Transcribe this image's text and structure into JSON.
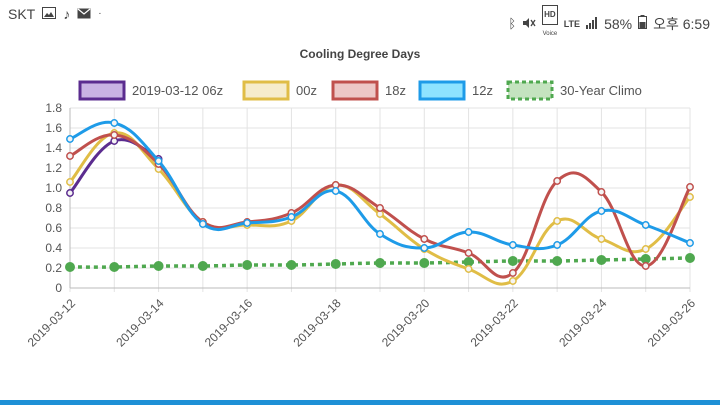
{
  "status_bar": {
    "carrier": "SKT",
    "battery": "58%",
    "time": "오후 6:59",
    "network": "LTE",
    "hd_label": "HD",
    "voice_label": "Voice",
    "left_icons": [
      "gallery-icon",
      "music-note-icon",
      "mail-icon",
      "dot-icon"
    ],
    "right_icons": [
      "bluetooth-icon",
      "mute-icon",
      "signal-icon",
      "battery-icon"
    ]
  },
  "colors": {
    "accent_bar": "#1e90d6",
    "series": [
      "#5b2c8f",
      "#e0bd46",
      "#c0504d",
      "#1e9be8",
      "#4fa84f"
    ]
  },
  "chart_data": {
    "type": "line",
    "title": "Cooling Degree Days",
    "legend_position": "top",
    "grid": true,
    "ylim": [
      0,
      1.8
    ],
    "yticks": [
      0,
      0.2,
      0.4,
      0.6,
      0.8,
      1.0,
      1.2,
      1.4,
      1.6,
      1.8
    ],
    "ytick_labels": [
      "0",
      "0.2",
      "0.4",
      "0.6",
      "0.8",
      "1.0",
      "1.2",
      "1.4",
      "1.6",
      "1.8"
    ],
    "x": [
      "2019-03-12",
      "2019-03-13",
      "2019-03-14",
      "2019-03-15",
      "2019-03-16",
      "2019-03-17",
      "2019-03-18",
      "2019-03-19",
      "2019-03-20",
      "2019-03-21",
      "2019-03-22",
      "2019-03-23",
      "2019-03-24",
      "2019-03-25",
      "2019-03-26"
    ],
    "xtick_labels": [
      "2019-03-12",
      "2019-03-14",
      "2019-03-16",
      "2019-03-18",
      "2019-03-20",
      "2019-03-22",
      "2019-03-24",
      "2019-03-26"
    ],
    "series": [
      {
        "name": "2019-03-12 06z",
        "values": [
          0.95,
          1.47,
          1.29,
          null,
          null,
          null,
          null,
          null,
          null,
          null,
          null,
          null,
          null,
          null,
          null
        ]
      },
      {
        "name": "00z",
        "values": [
          1.06,
          1.55,
          1.19,
          0.66,
          0.63,
          0.67,
          1.03,
          0.74,
          0.39,
          0.19,
          0.07,
          0.67,
          0.49,
          0.39,
          0.91
        ]
      },
      {
        "name": "18z",
        "values": [
          1.32,
          1.53,
          1.24,
          0.66,
          0.66,
          0.75,
          1.03,
          0.8,
          0.49,
          0.35,
          0.15,
          1.07,
          0.96,
          0.22,
          1.01
        ]
      },
      {
        "name": "12z",
        "values": [
          1.49,
          1.65,
          1.27,
          0.64,
          0.65,
          0.71,
          0.97,
          0.54,
          0.4,
          0.56,
          0.43,
          0.43,
          0.77,
          0.63,
          0.45
        ]
      },
      {
        "name": "30-Year Climo",
        "values": [
          0.21,
          0.21,
          0.22,
          0.22,
          0.23,
          0.23,
          0.24,
          0.25,
          0.25,
          0.26,
          0.27,
          0.27,
          0.28,
          0.29,
          0.3
        ],
        "style": "dotted"
      }
    ]
  }
}
